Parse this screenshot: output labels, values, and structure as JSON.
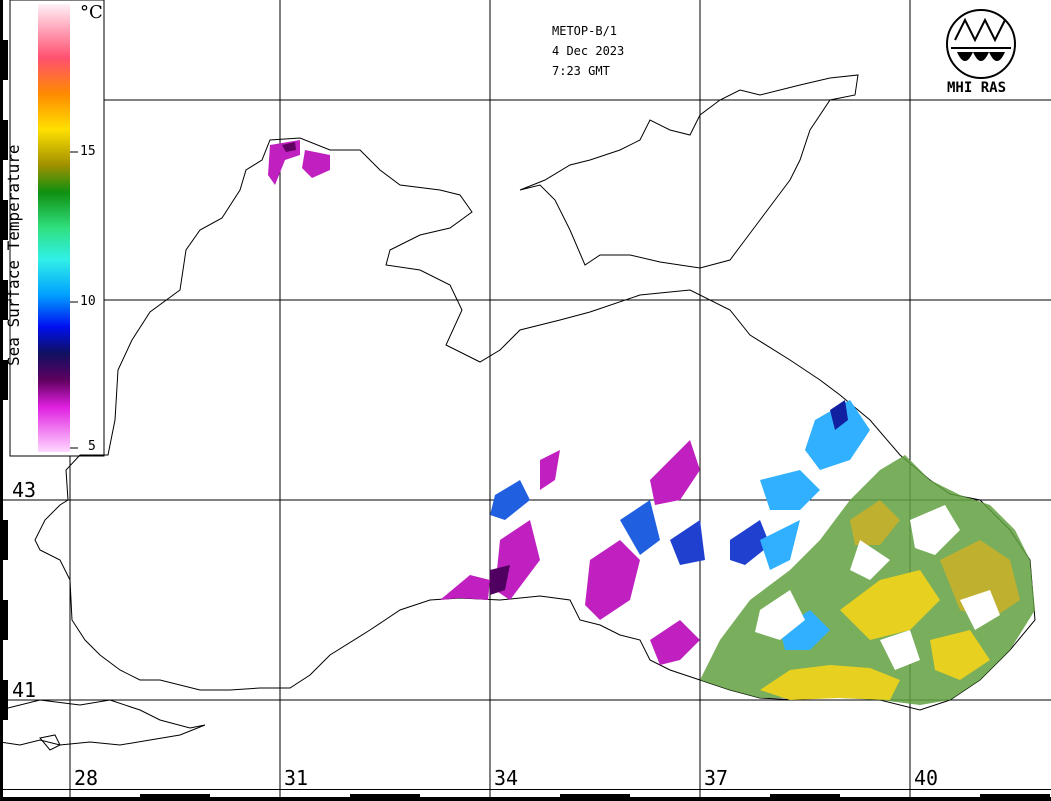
{
  "header": {
    "satellite": "METOP-B/1",
    "date": "4 Dec 2023",
    "time": "7:23 GMT"
  },
  "logo": {
    "text": "MHI RAS"
  },
  "legend": {
    "title": "Sea Surface Temperature",
    "unit": "°C",
    "ticks": [
      "15",
      "10",
      "5"
    ],
    "colors": [
      "#ffe8f4",
      "#ff3040",
      "#ff9000",
      "#ffee00",
      "#b0a000",
      "#20a020",
      "#30e070",
      "#30f0e0",
      "#00b0ff",
      "#0010f0",
      "#101080",
      "#500050",
      "#c020c0",
      "#ff80ff",
      "#ffd0ff"
    ]
  },
  "grid": {
    "lat_labels": [
      "43",
      "41"
    ],
    "lon_labels": [
      "28",
      "31",
      "34",
      "37",
      "40"
    ]
  },
  "colors": {
    "coast": "#000000",
    "warm": "#e8d020",
    "mid": "#60a040",
    "cool": "#30b0ff",
    "cold": "#2020c0",
    "coldest": "#c020c0"
  }
}
